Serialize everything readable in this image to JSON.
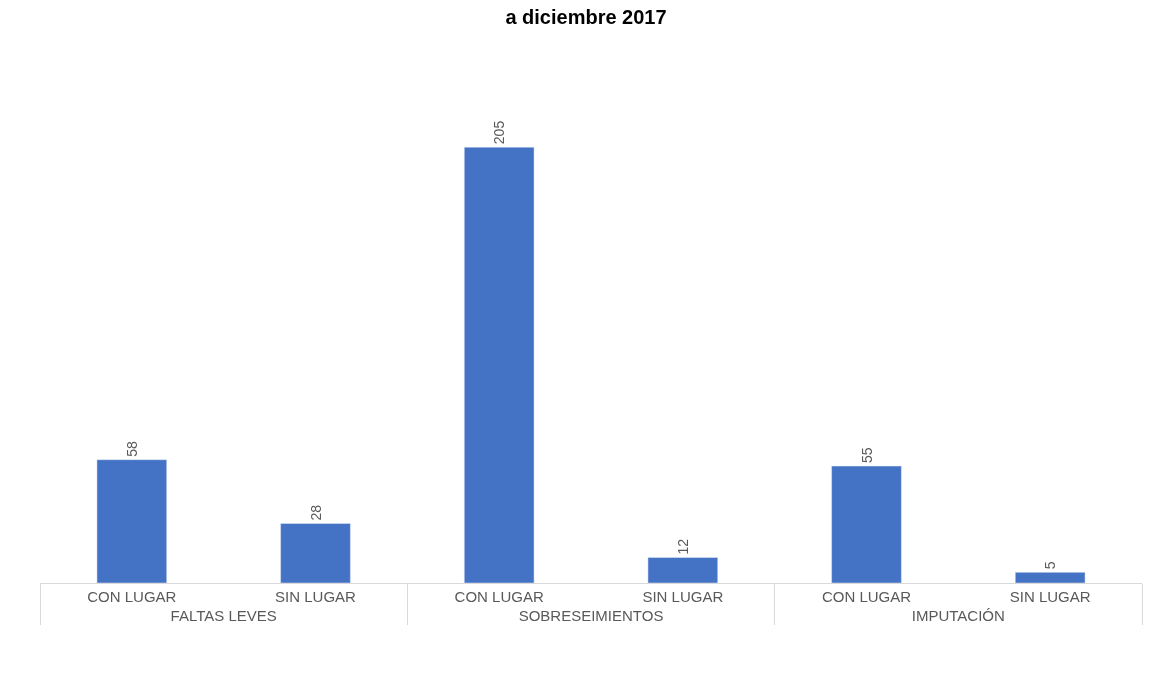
{
  "chart_data": {
    "type": "bar",
    "title": "a diciembre 2017",
    "categories": [
      "CON LUGAR",
      "SIN LUGAR",
      "CON LUGAR",
      "SIN LUGAR",
      "CON LUGAR",
      "SIN LUGAR"
    ],
    "annotations": [
      "FALTAS LEVES",
      "SOBRESEIMIENTOS",
      "IMPUTACIÓN"
    ],
    "values": [
      58,
      28,
      205,
      12,
      55,
      5
    ],
    "color": "#4472c4",
    "data_labels": true,
    "legend": false
  }
}
